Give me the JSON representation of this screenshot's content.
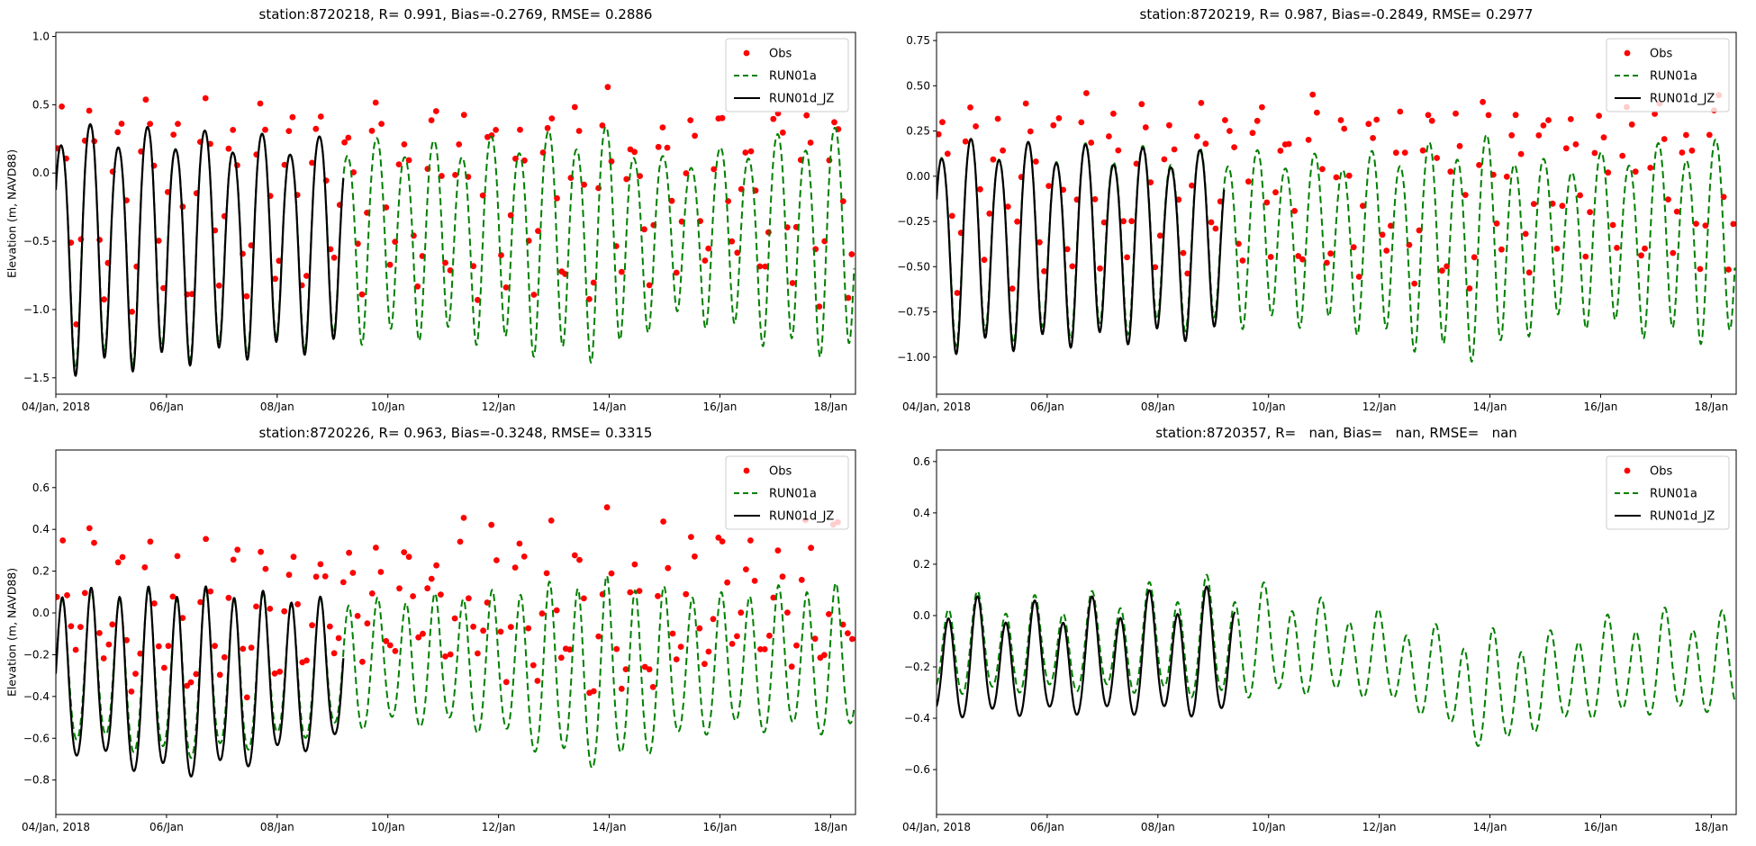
{
  "figure": {
    "background": "#ffffff",
    "legend": {
      "position": "upper right",
      "entries": [
        "Obs",
        "RUN01a",
        "RUN01d_JZ"
      ],
      "frame_color": "#cccccc",
      "frame_fill": "rgba(255,255,255,0.8)"
    },
    "colors": {
      "obs": "#ff0000",
      "run01a": "#008000",
      "run01d_jz": "#000000",
      "axis": "#000000"
    }
  },
  "chart_data": [
    {
      "type": "line+scatter",
      "station": "8720218",
      "title": "station:8720218, R= 0.991, Bias=-0.2769, RMSE= 0.2886",
      "stats": {
        "R": "0.991",
        "Bias": "-0.2769",
        "RMSE": "0.2886"
      },
      "ylabel": "Elevation (m, NAVD88)",
      "ylim": [
        -1.62,
        1.03
      ],
      "xlim_days": [
        0,
        14.45
      ],
      "yticks": [
        {
          "v": 1.0,
          "label": "1.0"
        },
        {
          "v": 0.5,
          "label": "0.5"
        },
        {
          "v": 0.0,
          "label": "0.0"
        },
        {
          "v": -0.5,
          "label": "−0.5"
        },
        {
          "v": -1.0,
          "label": "−1.0"
        },
        {
          "v": -1.5,
          "label": "−1.5"
        }
      ],
      "xticks": [
        {
          "t": 0,
          "label": "04/Jan, 2018"
        },
        {
          "t": 2,
          "label": "06/Jan"
        },
        {
          "t": 4,
          "label": "08/Jan"
        },
        {
          "t": 6,
          "label": "10/Jan"
        },
        {
          "t": 8,
          "label": "12/Jan"
        },
        {
          "t": 10,
          "label": "14/Jan"
        },
        {
          "t": 12,
          "label": "16/Jan"
        },
        {
          "t": 14,
          "label": "18/Jan"
        }
      ],
      "series": {
        "obs": {
          "label": "Obs",
          "color": "#ff0000",
          "marker": "dot",
          "present": true,
          "interval_days": 0.0835,
          "t_range": [
            0.03,
            14.4
          ],
          "offset": 0.28,
          "amp_factor": 0.85,
          "noise": 0.11,
          "seed": 11
        },
        "run01a": {
          "label": "RUN01a",
          "color": "#008000",
          "style": "dashed",
          "t_range": [
            0,
            14.43
          ],
          "period_days": 0.5175,
          "phase_days": 0.1,
          "skew": 0.12,
          "diurnal": 0.12,
          "diurnal_phase": 2.5,
          "mean_daily": [
            -0.45,
            -0.45,
            -0.44,
            -0.44,
            -0.43,
            -0.43,
            -0.42,
            -0.42,
            -0.43,
            -0.45,
            -0.44,
            -0.42,
            -0.42,
            -0.43,
            -0.43
          ],
          "amp_daily": [
            0.83,
            0.81,
            0.79,
            0.76,
            0.73,
            0.71,
            0.69,
            0.67,
            0.72,
            0.78,
            0.8,
            0.55,
            0.62,
            0.73,
            0.78
          ]
        },
        "run01d_jz": {
          "label": "RUN01d_JZ",
          "color": "#000000",
          "style": "solid",
          "t_range": [
            0,
            5.2
          ],
          "period_days": 0.5175,
          "phase_days": 0.1,
          "skew": 0.12,
          "diurnal": 0.12,
          "diurnal_phase": 2.5,
          "mean_daily": [
            -0.47,
            -0.47,
            -0.46,
            -0.46,
            -0.45,
            -0.45
          ],
          "amp_daily": [
            0.86,
            0.84,
            0.81,
            0.78,
            0.75,
            0.73
          ]
        }
      }
    },
    {
      "type": "line+scatter",
      "station": "8720219",
      "title": "station:8720219, R= 0.987, Bias=-0.2849, RMSE= 0.2977",
      "stats": {
        "R": "0.987",
        "Bias": "-0.2849",
        "RMSE": "0.2977"
      },
      "ylabel": "",
      "ylim": [
        -1.205,
        0.795
      ],
      "xlim_days": [
        0,
        14.45
      ],
      "yticks": [
        {
          "v": 0.75,
          "label": "0.75"
        },
        {
          "v": 0.5,
          "label": "0.50"
        },
        {
          "v": 0.25,
          "label": "0.25"
        },
        {
          "v": 0.0,
          "label": "0.00"
        },
        {
          "v": -0.25,
          "label": "−0.25"
        },
        {
          "v": -0.5,
          "label": "−0.50"
        },
        {
          "v": -0.75,
          "label": "−0.75"
        },
        {
          "v": -1.0,
          "label": "−1.00"
        }
      ],
      "xticks": [
        {
          "t": 0,
          "label": "04/Jan, 2018"
        },
        {
          "t": 2,
          "label": "06/Jan"
        },
        {
          "t": 4,
          "label": "08/Jan"
        },
        {
          "t": 6,
          "label": "10/Jan"
        },
        {
          "t": 8,
          "label": "12/Jan"
        },
        {
          "t": 10,
          "label": "14/Jan"
        },
        {
          "t": 12,
          "label": "16/Jan"
        },
        {
          "t": 14,
          "label": "18/Jan"
        }
      ],
      "series": {
        "obs": {
          "label": "Obs",
          "color": "#ff0000",
          "marker": "dot",
          "present": true,
          "interval_days": 0.0835,
          "t_range": [
            0.03,
            14.4
          ],
          "offset": 0.29,
          "amp_factor": 0.85,
          "noise": 0.1,
          "seed": 23
        },
        "run01a": {
          "label": "RUN01a",
          "color": "#008000",
          "style": "dashed",
          "t_range": [
            0,
            14.43
          ],
          "period_days": 0.5175,
          "phase_days": 0.1,
          "skew": 0.1,
          "diurnal": 0.13,
          "diurnal_phase": 2.5,
          "mean_daily": [
            -0.32,
            -0.32,
            -0.32,
            -0.31,
            -0.31,
            -0.31,
            -0.31,
            -0.32,
            -0.34,
            -0.36,
            -0.35,
            -0.33,
            -0.32,
            -0.32,
            -0.32
          ],
          "amp_daily": [
            0.53,
            0.52,
            0.5,
            0.49,
            0.47,
            0.46,
            0.45,
            0.44,
            0.48,
            0.55,
            0.58,
            0.42,
            0.45,
            0.5,
            0.52
          ]
        },
        "run01d_jz": {
          "label": "RUN01d_JZ",
          "color": "#000000",
          "style": "solid",
          "t_range": [
            0,
            5.2
          ],
          "period_days": 0.5175,
          "phase_days": 0.1,
          "skew": 0.1,
          "diurnal": 0.13,
          "diurnal_phase": 2.5,
          "mean_daily": [
            -0.34,
            -0.34,
            -0.34,
            -0.34,
            -0.34,
            -0.34
          ],
          "amp_daily": [
            0.55,
            0.54,
            0.52,
            0.51,
            0.49,
            0.48
          ]
        }
      }
    },
    {
      "type": "line+scatter",
      "station": "8720226",
      "title": "station:8720226, R= 0.963, Bias=-0.3248, RMSE= 0.3315",
      "stats": {
        "R": "0.963",
        "Bias": "-0.3248",
        "RMSE": "0.3315"
      },
      "ylabel": "Elevation (m, NAVD88)",
      "ylim": [
        -0.965,
        0.78
      ],
      "xlim_days": [
        0,
        14.45
      ],
      "yticks": [
        {
          "v": 0.6,
          "label": "0.6"
        },
        {
          "v": 0.4,
          "label": "0.4"
        },
        {
          "v": 0.2,
          "label": "0.2"
        },
        {
          "v": 0.0,
          "label": "0.0"
        },
        {
          "v": -0.2,
          "label": "−0.2"
        },
        {
          "v": -0.4,
          "label": "−0.4"
        },
        {
          "v": -0.6,
          "label": "−0.6"
        },
        {
          "v": -0.8,
          "label": "−0.8"
        }
      ],
      "xticks": [
        {
          "t": 0,
          "label": "04/Jan, 2018"
        },
        {
          "t": 2,
          "label": "06/Jan"
        },
        {
          "t": 4,
          "label": "08/Jan"
        },
        {
          "t": 6,
          "label": "10/Jan"
        },
        {
          "t": 8,
          "label": "12/Jan"
        },
        {
          "t": 10,
          "label": "14/Jan"
        },
        {
          "t": 12,
          "label": "16/Jan"
        },
        {
          "t": 14,
          "label": "18/Jan"
        }
      ],
      "series": {
        "obs": {
          "label": "Obs",
          "color": "#ff0000",
          "marker": "dot",
          "present": true,
          "interval_days": 0.0835,
          "t_range": [
            0.03,
            14.4
          ],
          "offset": 0.3,
          "amp_factor": 0.85,
          "noise": 0.09,
          "seed": 37
        },
        "run01a": {
          "label": "RUN01a",
          "color": "#008000",
          "style": "dashed",
          "t_range": [
            0,
            14.43
          ],
          "period_days": 0.5175,
          "phase_days": 0.12,
          "skew": -0.1,
          "diurnal": 0.1,
          "diurnal_phase": 2.2,
          "mean_daily": [
            -0.27,
            -0.3,
            -0.33,
            -0.32,
            -0.3,
            -0.28,
            -0.26,
            -0.25,
            -0.27,
            -0.31,
            -0.33,
            -0.29,
            -0.26,
            -0.25,
            -0.25
          ],
          "amp_daily": [
            0.32,
            0.35,
            0.38,
            0.37,
            0.33,
            0.3,
            0.29,
            0.3,
            0.33,
            0.4,
            0.44,
            0.36,
            0.31,
            0.33,
            0.34
          ]
        },
        "run01d_jz": {
          "label": "RUN01d_JZ",
          "color": "#000000",
          "style": "solid",
          "t_range": [
            0,
            5.2
          ],
          "period_days": 0.5175,
          "phase_days": 0.12,
          "skew": -0.1,
          "diurnal": 0.1,
          "diurnal_phase": 2.2,
          "mean_daily": [
            -0.3,
            -0.34,
            -0.37,
            -0.36,
            -0.33,
            -0.31
          ],
          "amp_daily": [
            0.36,
            0.4,
            0.43,
            0.42,
            0.37,
            0.33
          ]
        }
      }
    },
    {
      "type": "line+scatter",
      "station": "8720357",
      "title": "station:8720357, R=   nan, Bias=   nan, RMSE=   nan",
      "stats": {
        "R": "nan",
        "Bias": "nan",
        "RMSE": "nan"
      },
      "ylabel": "",
      "ylim": [
        -0.775,
        0.645
      ],
      "xlim_days": [
        0,
        14.45
      ],
      "yticks": [
        {
          "v": 0.6,
          "label": "0.6"
        },
        {
          "v": 0.4,
          "label": "0.4"
        },
        {
          "v": 0.2,
          "label": "0.2"
        },
        {
          "v": 0.0,
          "label": "0.0"
        },
        {
          "v": -0.2,
          "label": "−0.2"
        },
        {
          "v": -0.4,
          "label": "−0.4"
        },
        {
          "v": -0.6,
          "label": "−0.6"
        }
      ],
      "xticks": [
        {
          "t": 0,
          "label": "04/Jan, 2018"
        },
        {
          "t": 2,
          "label": "06/Jan"
        },
        {
          "t": 4,
          "label": "08/Jan"
        },
        {
          "t": 6,
          "label": "10/Jan"
        },
        {
          "t": 8,
          "label": "12/Jan"
        },
        {
          "t": 10,
          "label": "14/Jan"
        },
        {
          "t": 12,
          "label": "16/Jan"
        },
        {
          "t": 14,
          "label": "18/Jan"
        }
      ],
      "series": {
        "obs": {
          "label": "Obs",
          "color": "#ff0000",
          "marker": "dot",
          "present": false
        },
        "run01a": {
          "label": "RUN01a",
          "color": "#008000",
          "style": "dashed",
          "t_range": [
            0,
            14.43
          ],
          "period_days": 0.5175,
          "phase_days": 0.22,
          "skew": -0.06,
          "diurnal": 0.25,
          "diurnal_phase": 2.8,
          "mean_daily": [
            -0.12,
            -0.13,
            -0.13,
            -0.12,
            -0.11,
            -0.11,
            -0.12,
            -0.14,
            -0.17,
            -0.24,
            -0.32,
            -0.27,
            -0.22,
            -0.2,
            -0.2
          ],
          "amp_daily": [
            0.18,
            0.17,
            0.16,
            0.17,
            0.19,
            0.21,
            0.19,
            0.16,
            0.15,
            0.16,
            0.21,
            0.16,
            0.17,
            0.18,
            0.17
          ]
        },
        "run01d_jz": {
          "label": "RUN01d_JZ",
          "color": "#000000",
          "style": "solid",
          "t_range": [
            0,
            5.4
          ],
          "period_days": 0.5175,
          "phase_days": 0.22,
          "skew": -0.06,
          "diurnal": 0.25,
          "diurnal_phase": 2.8,
          "mean_daily": [
            -0.18,
            -0.19,
            -0.19,
            -0.18,
            -0.17,
            -0.17
          ],
          "amp_daily": [
            0.21,
            0.2,
            0.19,
            0.2,
            0.21,
            0.22
          ]
        }
      }
    }
  ]
}
